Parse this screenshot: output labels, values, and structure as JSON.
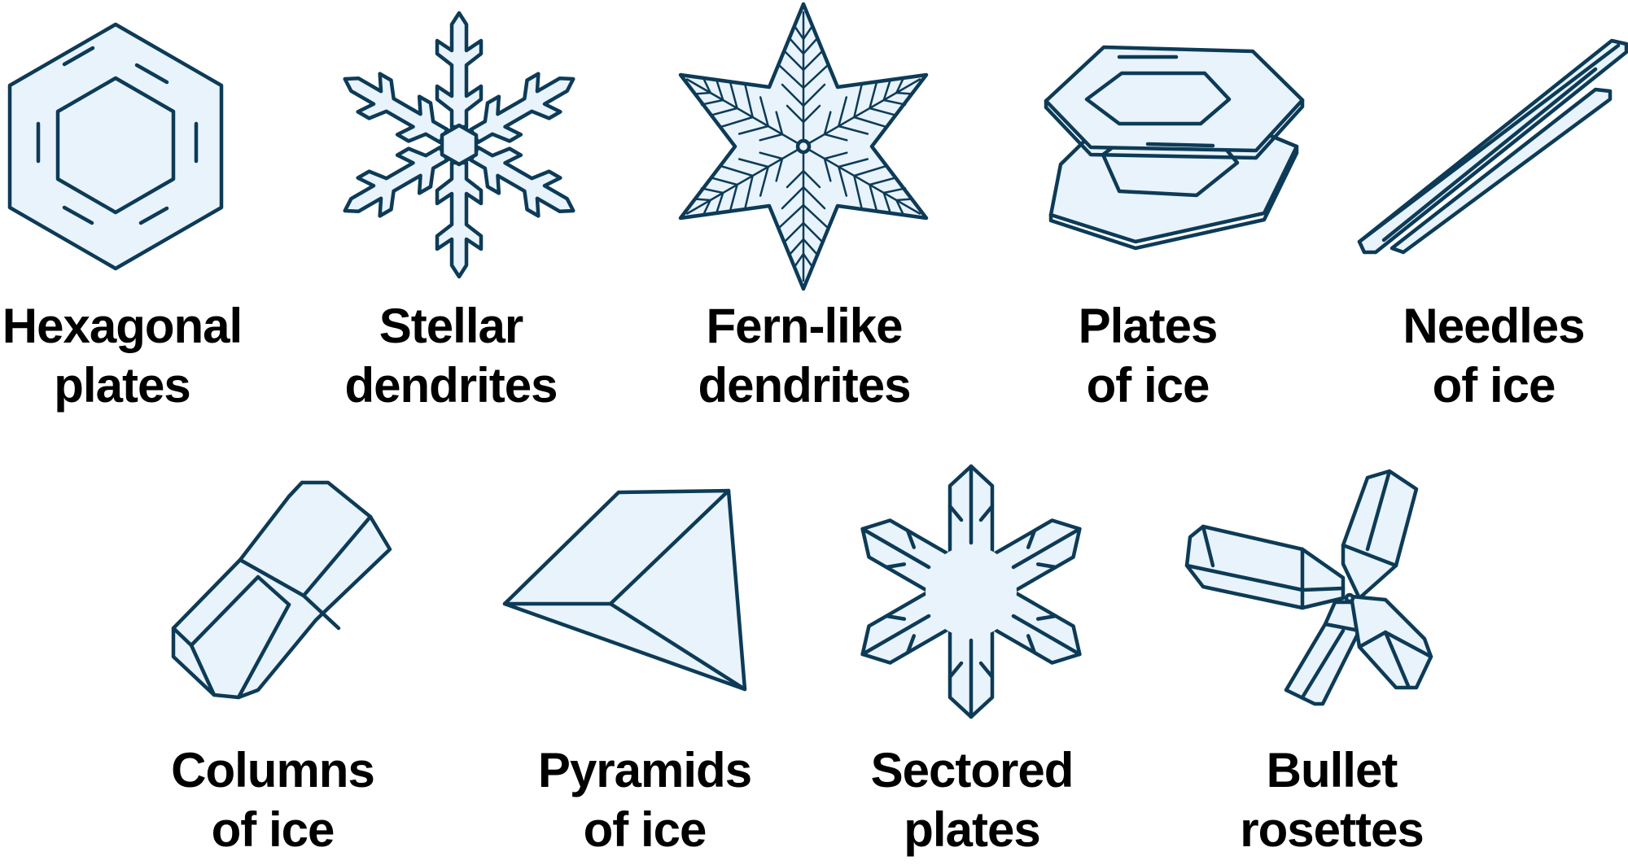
{
  "palette": {
    "stroke": "#0d3b57",
    "fill": "#e8f3fb",
    "text": "#000000"
  },
  "crystals": [
    {
      "id": "hexagonal-plates",
      "icon": "hexagonal-plate-icon",
      "label": [
        "Hexagonal",
        "plates"
      ]
    },
    {
      "id": "stellar-dendrites",
      "icon": "stellar-dendrite-icon",
      "label": [
        "Stellar",
        "dendrites"
      ]
    },
    {
      "id": "fern-like-dendrites",
      "icon": "fern-dendrite-icon",
      "label": [
        "Fern-like",
        "dendrites"
      ]
    },
    {
      "id": "plates-of-ice",
      "icon": "stacked-plates-icon",
      "label": [
        "Plates",
        "of ice"
      ]
    },
    {
      "id": "needles-of-ice",
      "icon": "needle-icon",
      "label": [
        "Needles",
        "of ice"
      ]
    },
    {
      "id": "columns-of-ice",
      "icon": "column-icon",
      "label": [
        "Columns",
        "of ice"
      ]
    },
    {
      "id": "pyramids-of-ice",
      "icon": "pyramid-icon",
      "label": [
        "Pyramids",
        "of ice"
      ]
    },
    {
      "id": "sectored-plates",
      "icon": "sectored-plate-icon",
      "label": [
        "Sectored",
        "plates"
      ]
    },
    {
      "id": "bullet-rosettes",
      "icon": "bullet-rosette-icon",
      "label": [
        "Bullet",
        "rosettes"
      ]
    }
  ]
}
